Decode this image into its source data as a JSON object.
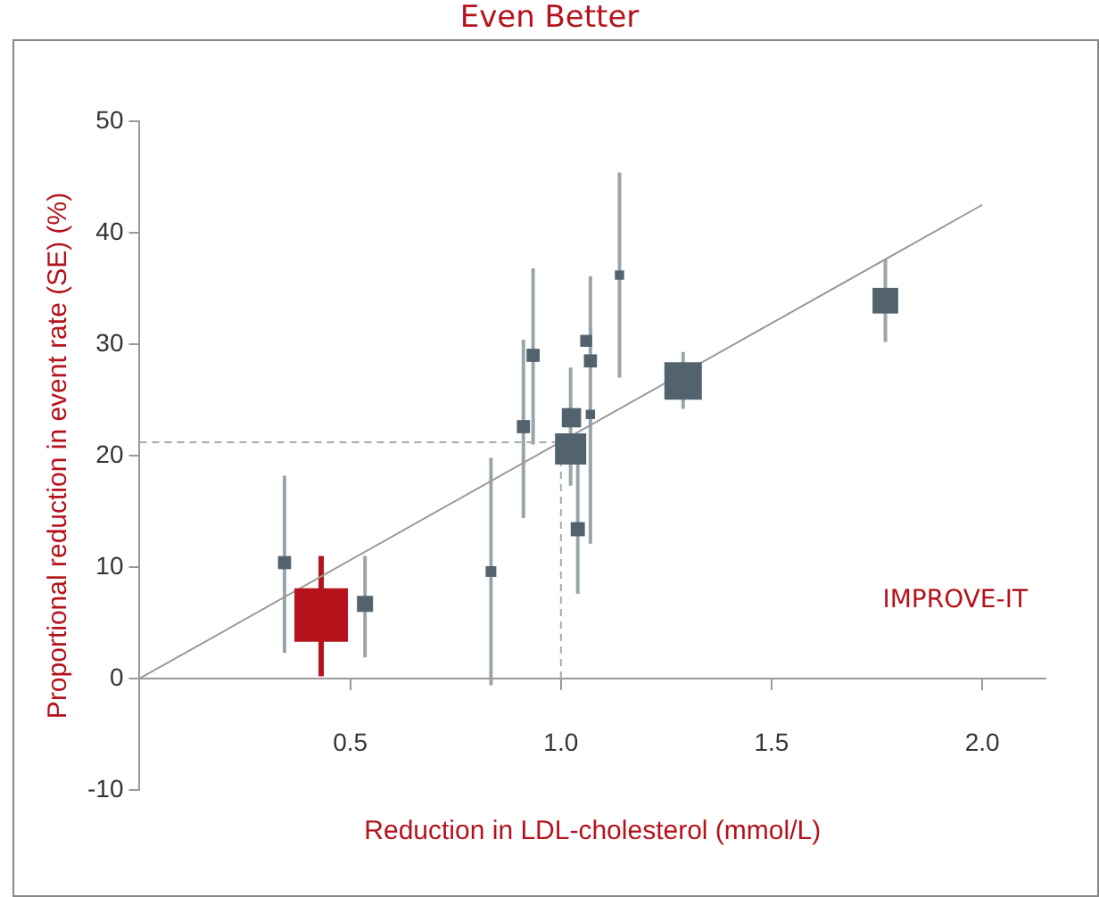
{
  "chart_data": {
    "type": "bubble",
    "title": "Even Better",
    "xlabel": "Reduction in LDL-cholesterol (mmol/L)",
    "ylabel": "Proportional reduction in event rate (SE) (%)",
    "xlim": [
      0,
      2.15
    ],
    "ylim": [
      -10,
      50
    ],
    "xticks": [
      {
        "value": 0.5,
        "label": "0.5"
      },
      {
        "value": 1,
        "label": "1.0"
      },
      {
        "value": 1.5,
        "label": "1.5"
      },
      {
        "value": 2,
        "label": "2.0"
      }
    ],
    "yticks": [
      -10,
      0,
      10,
      20,
      30,
      40,
      50
    ],
    "grid": false,
    "legend": false,
    "marker": "square",
    "series": [
      {
        "colors": [
          "#52636e",
          "#b5121b",
          "#52636e",
          "#52636e",
          "#52636e",
          "#52636e",
          "#52636e",
          "#52636e",
          "#52636e",
          "#52636e",
          "#52636e",
          "#52636e",
          "#52636e",
          "#52636e",
          "#52636e"
        ],
        "x": [
          0.344,
          0.431,
          0.535,
          0.834,
          0.911,
          0.934,
          1.023,
          1.025,
          1.07,
          1.06,
          1.07,
          1.04,
          1.139,
          1.29,
          1.77
        ],
        "values": [
          10.4,
          5.7,
          6.7,
          9.6,
          22.6,
          29.0,
          20.6,
          23.4,
          23.7,
          30.3,
          28.5,
          13.4,
          36.2,
          26.7,
          33.9
        ],
        "sizes": [
          0.06,
          1,
          0.09,
          0.04,
          0.06,
          0.06,
          0.34,
          0.13,
          0.03,
          0.05,
          0.06,
          0.07,
          0.03,
          0.49,
          0.23
        ],
        "errors": [
          [
            2.3,
            18.2
          ],
          [
            0.2,
            11.0
          ],
          [
            1.9,
            11.0
          ],
          [
            -0.6,
            19.8
          ],
          [
            14.4,
            30.4
          ],
          [
            21.0,
            36.8
          ],
          [
            17.3,
            27.9
          ],
          null,
          null,
          null,
          [
            12.1,
            36.1
          ],
          [
            7.6,
            22.0
          ],
          [
            27.0,
            45.4
          ],
          [
            24.2,
            29.3
          ],
          [
            30.2,
            37.6
          ]
        ]
      },
      {
        "type": "line",
        "color": "#9a9a9a",
        "x": [
          0,
          2
        ],
        "values": [
          0,
          42.5
        ],
        "marker": "none"
      }
    ],
    "ref_lines": [
      {
        "axis": "y",
        "value": 21.2,
        "color": "#aaaaaa",
        "line_style": "dashed"
      },
      {
        "axis": "x",
        "value": 1.0,
        "color": "#aaaaaa",
        "line_style": "dashed"
      }
    ],
    "annotations": [
      "IMPROVE-IT"
    ]
  }
}
